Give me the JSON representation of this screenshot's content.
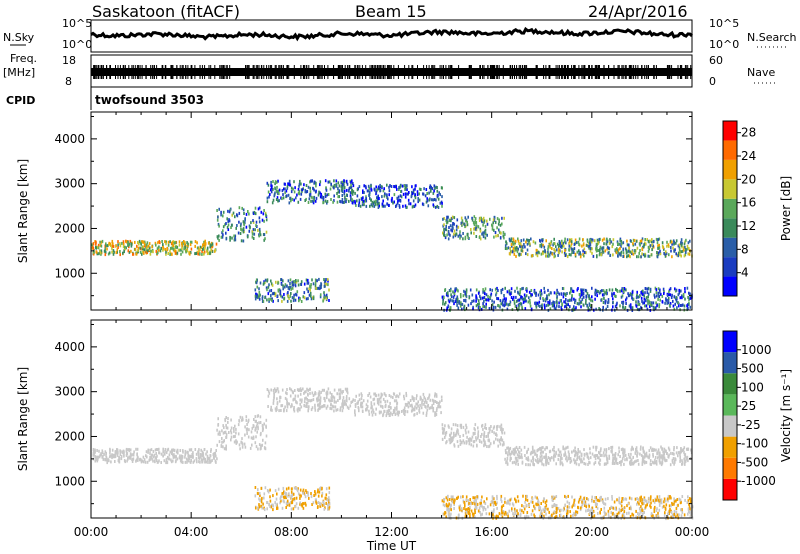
{
  "header": {
    "station": "Saskatoon (fitACF)",
    "beam": "Beam 15",
    "date": "24/Apr/2016"
  },
  "noise_panel": {
    "left_label": "N.Sky",
    "right_label": "N.Search",
    "left_ticks": [
      "10^5",
      "10^0"
    ],
    "right_ticks": [
      "10^5",
      "10^0"
    ]
  },
  "freq_panel": {
    "left_label_1": "Freq.",
    "left_label_2": "[MHz]",
    "left_ticks": [
      "18",
      "8"
    ],
    "right_label": "Nave",
    "right_ticks": [
      "60",
      "0"
    ],
    "cpid_label": "CPID",
    "cpid_value": "twofsound 3503"
  },
  "colors": {
    "power_scale": [
      "#0000ff",
      "#1a3cc0",
      "#2a5ea8",
      "#3a8a5a",
      "#5aa85a",
      "#c8c832",
      "#f0a000",
      "#ff6a00",
      "#ff0000"
    ],
    "velocity_scale": [
      "#0000ff",
      "#2a5aa8",
      "#3a8a3a",
      "#5ab85a",
      "#c8c8c8",
      "#f0a000",
      "#ff7a00",
      "#ff0000"
    ]
  },
  "chart_data": [
    {
      "type": "heatmap",
      "panel": "power",
      "xlabel": "",
      "ylabel": "Slant Range [km]",
      "x_ticks": [
        "00:00",
        "04:00",
        "08:00",
        "12:00",
        "16:00",
        "20:00",
        "00:00"
      ],
      "xlim_hours": [
        0,
        24
      ],
      "y_ticks": [
        1000,
        2000,
        3000,
        4000
      ],
      "ylim_km": [
        180,
        4600
      ],
      "colorbar_label": "Power [dB]",
      "colorbar_ticks": [
        4,
        8,
        12,
        16,
        20,
        24,
        28
      ],
      "colorbar_range": [
        0,
        30
      ],
      "scatter_bands": [
        {
          "hours": [
            0.0,
            5.0
          ],
          "range_km": [
            1450,
            1750
          ],
          "value": 18
        },
        {
          "hours": [
            5.0,
            7.0
          ],
          "range_km": [
            1750,
            2500
          ],
          "value": 10
        },
        {
          "hours": [
            7.0,
            10.5
          ],
          "range_km": [
            2600,
            3100
          ],
          "value": 8
        },
        {
          "hours": [
            10.5,
            14.0
          ],
          "range_km": [
            2500,
            3000
          ],
          "value": 7
        },
        {
          "hours": [
            14.0,
            16.5
          ],
          "range_km": [
            1800,
            2300
          ],
          "value": 12
        },
        {
          "hours": [
            16.5,
            24.0
          ],
          "range_km": [
            1400,
            1800
          ],
          "value": 14
        },
        {
          "hours": [
            6.5,
            9.5
          ],
          "range_km": [
            400,
            900
          ],
          "value": 10
        },
        {
          "hours": [
            14.0,
            24.0
          ],
          "range_km": [
            200,
            700
          ],
          "value": 8
        }
      ]
    },
    {
      "type": "heatmap",
      "panel": "velocity",
      "xlabel": "Time UT",
      "ylabel": "Slant Range [km]",
      "x_ticks": [
        "00:00",
        "04:00",
        "08:00",
        "12:00",
        "16:00",
        "20:00",
        "00:00"
      ],
      "xlim_hours": [
        0,
        24
      ],
      "y_ticks": [
        1000,
        2000,
        3000,
        4000
      ],
      "ylim_km": [
        180,
        4600
      ],
      "colorbar_label": "Velocity [m s^-1]",
      "colorbar_ticks": [
        "1000",
        "500",
        "100",
        "25",
        "-25",
        "-100",
        "-500",
        "-1000"
      ],
      "scatter_bands": [
        {
          "hours": [
            0.0,
            5.0
          ],
          "range_km": [
            1450,
            1750
          ],
          "value": 0
        },
        {
          "hours": [
            5.0,
            7.0
          ],
          "range_km": [
            1750,
            2500
          ],
          "value": 0
        },
        {
          "hours": [
            7.0,
            10.5
          ],
          "range_km": [
            2600,
            3100
          ],
          "value": 0
        },
        {
          "hours": [
            10.5,
            14.0
          ],
          "range_km": [
            2500,
            3000
          ],
          "value": 0
        },
        {
          "hours": [
            14.0,
            16.5
          ],
          "range_km": [
            1800,
            2300
          ],
          "value": 0
        },
        {
          "hours": [
            16.5,
            24.0
          ],
          "range_km": [
            1400,
            1800
          ],
          "value": 0
        },
        {
          "hours": [
            6.5,
            9.5
          ],
          "range_km": [
            400,
            900
          ],
          "value": -200
        },
        {
          "hours": [
            14.0,
            24.0
          ],
          "range_km": [
            200,
            700
          ],
          "value": -150
        }
      ]
    }
  ]
}
